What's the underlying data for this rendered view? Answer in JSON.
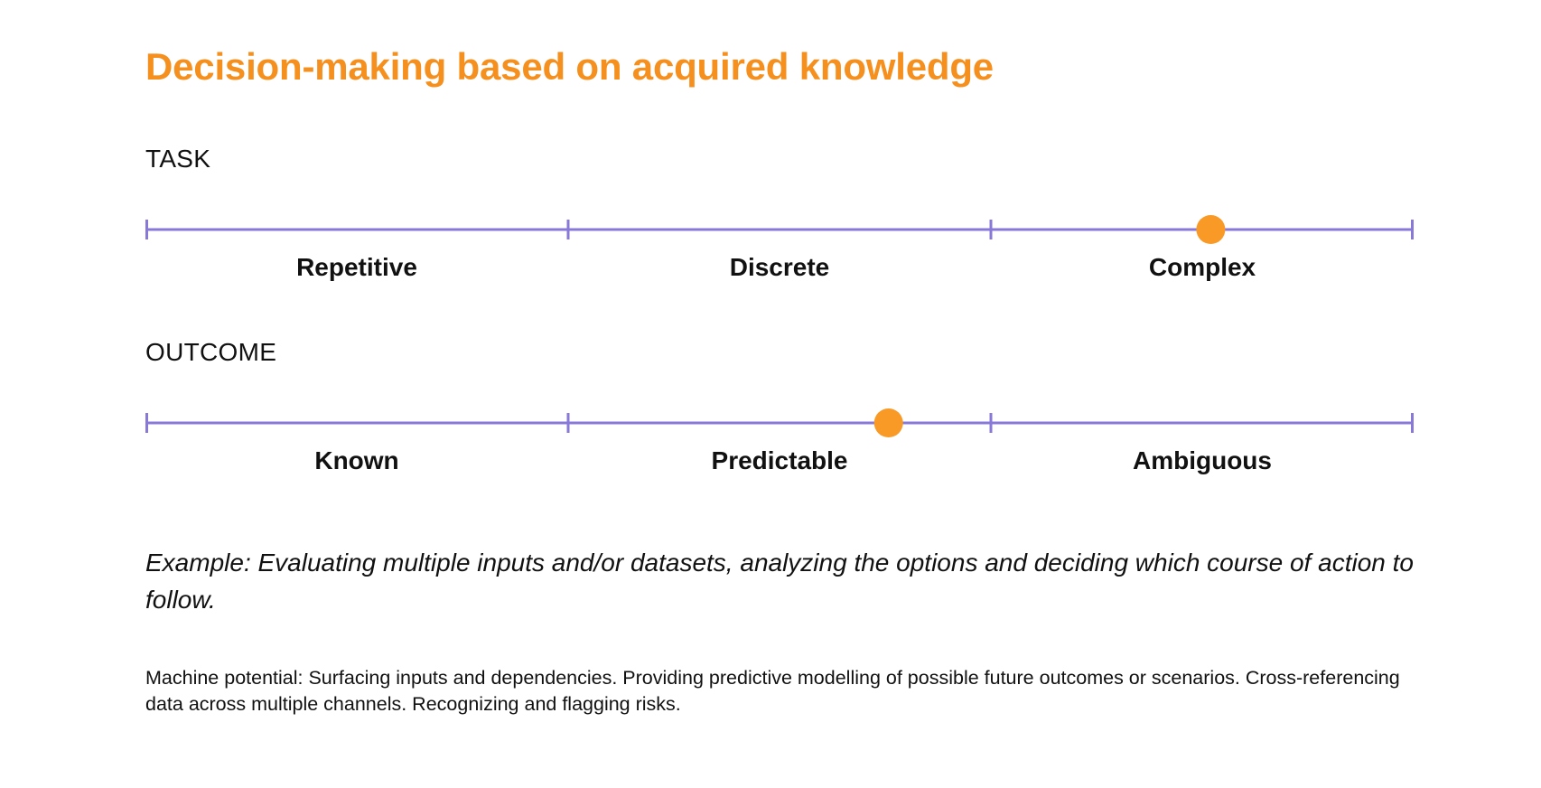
{
  "title": "Decision-making based on acquired knowledge",
  "colors": {
    "title": "#f5901e",
    "scale_line": "#8878d8",
    "marker": "#f99a26",
    "text": "#111111"
  },
  "task": {
    "label": "TASK",
    "categories": [
      "Repetitive",
      "Discrete",
      "Complex"
    ],
    "marker_position": 0.84
  },
  "outcome": {
    "label": "OUTCOME",
    "categories": [
      "Known",
      "Predictable",
      "Ambiguous"
    ],
    "marker_position": 0.586
  },
  "example": "Example: Evaluating multiple inputs and/or datasets, analyzing the options and deciding which course of action to follow.",
  "machine_potential": "Machine potential: Surfacing inputs and dependencies. Providing predictive modelling of possible future outcomes or scenarios. Cross-referencing data across multiple channels. Recognizing and flagging risks."
}
